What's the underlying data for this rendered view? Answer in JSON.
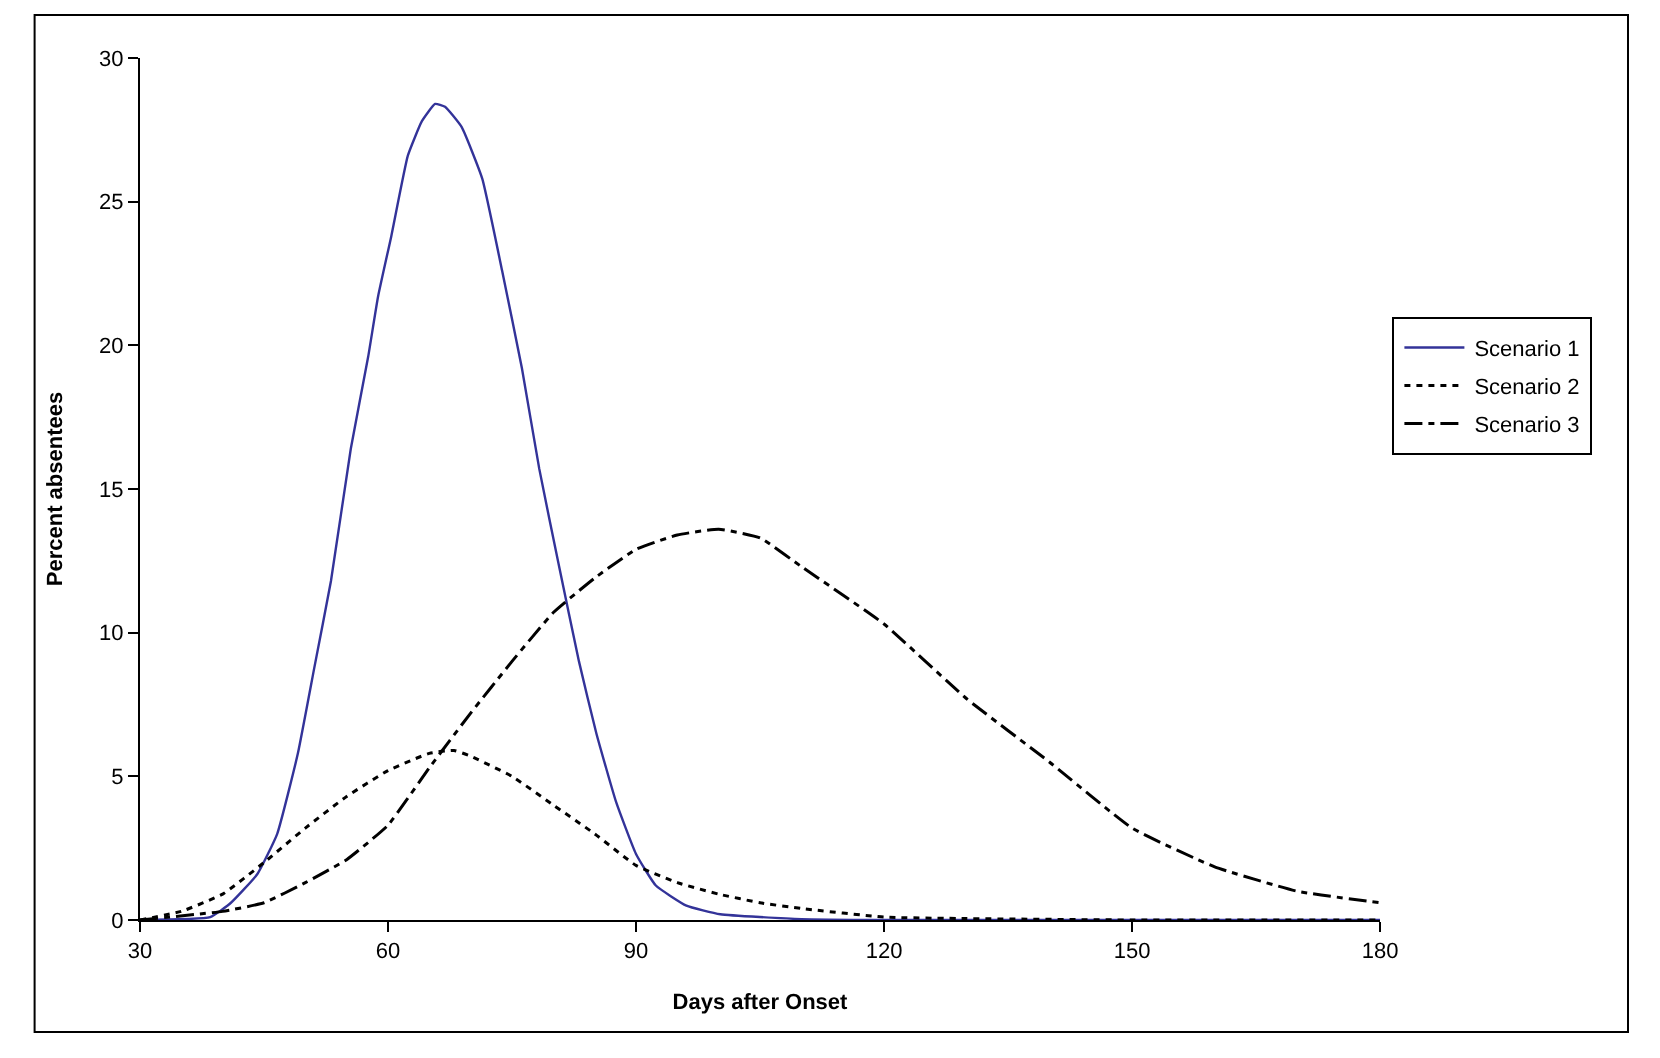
{
  "chart_data": {
    "type": "line",
    "xlabel": "Days after Onset",
    "ylabel": "Percent absentees",
    "xlim": [
      30,
      180
    ],
    "xticks": [
      30,
      60,
      90,
      120,
      150,
      180
    ],
    "ylim": [
      0,
      30
    ],
    "yticks": [
      0,
      5,
      10,
      15,
      20,
      25,
      30
    ],
    "grid": false,
    "legend": "right",
    "marker": "none",
    "series": [
      {
        "name": "Scenario 1",
        "color": "#333399",
        "line_style": "solid",
        "x": [
          30,
          38.5,
          41,
          44.2,
          46.6,
          49.1,
          51.1,
          53.1,
          55.5,
          57.6,
          58.8,
          60.4,
          62.4,
          64.1,
          65.7,
          66.9,
          68.9,
          71.4,
          73.8,
          76.2,
          78.3,
          80.7,
          83.1,
          85.2,
          87.6,
          90,
          92.4,
          96.1,
          100.2,
          110,
          120,
          150,
          180
        ],
        "values": [
          0,
          0.1,
          0.6,
          1.6,
          3.0,
          5.8,
          8.8,
          11.8,
          16.4,
          19.6,
          21.7,
          23.8,
          26.6,
          27.8,
          28.4,
          28.3,
          27.6,
          25.8,
          22.6,
          19.2,
          15.7,
          12.3,
          9.0,
          6.5,
          4.1,
          2.3,
          1.2,
          0.5,
          0.2,
          0.03,
          0,
          0,
          0
        ]
      },
      {
        "name": "Scenario 2",
        "color": "#000000",
        "line_style": "dotted",
        "x": [
          30,
          35,
          40,
          45,
          50,
          55,
          60,
          65,
          68,
          70,
          75,
          80,
          85,
          90,
          95,
          100,
          105,
          110,
          120,
          130,
          150,
          180
        ],
        "values": [
          0,
          0.3,
          0.9,
          2.0,
          3.2,
          4.3,
          5.2,
          5.8,
          5.9,
          5.7,
          5.0,
          4.0,
          3.0,
          1.9,
          1.3,
          0.9,
          0.6,
          0.4,
          0.1,
          0.05,
          0,
          0
        ]
      },
      {
        "name": "Scenario 3",
        "color": "#000000",
        "line_style": "dashdot",
        "x": [
          30,
          40,
          45,
          50,
          55,
          60,
          65,
          70,
          75,
          80,
          85,
          90,
          95,
          100,
          105,
          110,
          120,
          130,
          140,
          150,
          160,
          170,
          180
        ],
        "values": [
          0,
          0.3,
          0.6,
          1.3,
          2.1,
          3.3,
          5.3,
          7.2,
          9.0,
          10.7,
          11.9,
          12.9,
          13.4,
          13.6,
          13.3,
          12.3,
          10.3,
          7.7,
          5.5,
          3.2,
          1.85,
          1.0,
          0.6
        ]
      }
    ]
  }
}
